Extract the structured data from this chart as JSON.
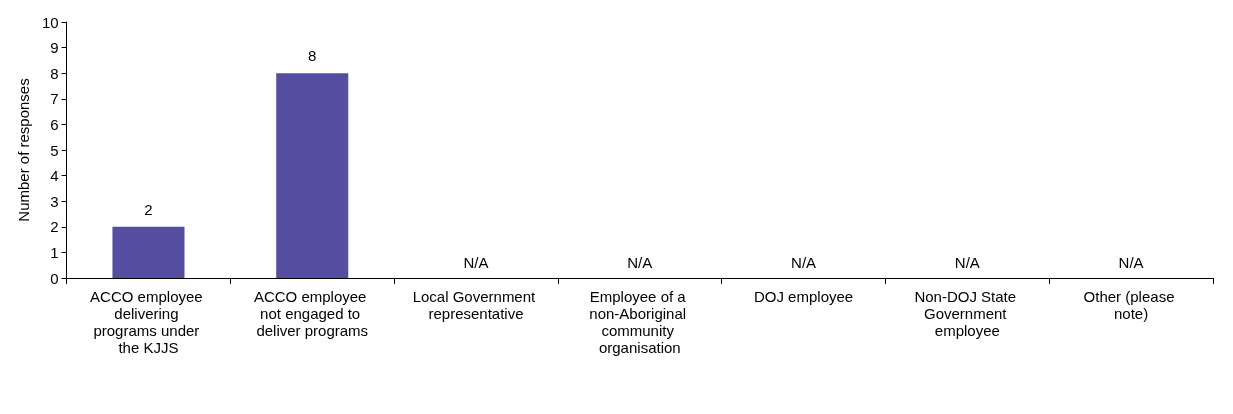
{
  "chart_data": {
    "type": "bar",
    "ylabel": "Number of responses",
    "categories": [
      "ACCO employee delivering programs under the KJJS",
      "ACCO employee not engaged to deliver programs",
      "Local Government representative",
      "Employee of a non-Aboriginal community organisation",
      "DOJ employee",
      "Non-DOJ State Government employee",
      "Other (please note)"
    ],
    "values": [
      2,
      8,
      null,
      null,
      null,
      null,
      null
    ],
    "value_labels": [
      "2",
      "8",
      "N/A",
      "N/A",
      "N/A",
      "N/A",
      "N/A"
    ],
    "color": "#554ea0",
    "ylim": [
      0,
      10
    ],
    "yticks": [
      0,
      1,
      2,
      3,
      4,
      5,
      6,
      7,
      8,
      9,
      10
    ],
    "grid": false
  }
}
